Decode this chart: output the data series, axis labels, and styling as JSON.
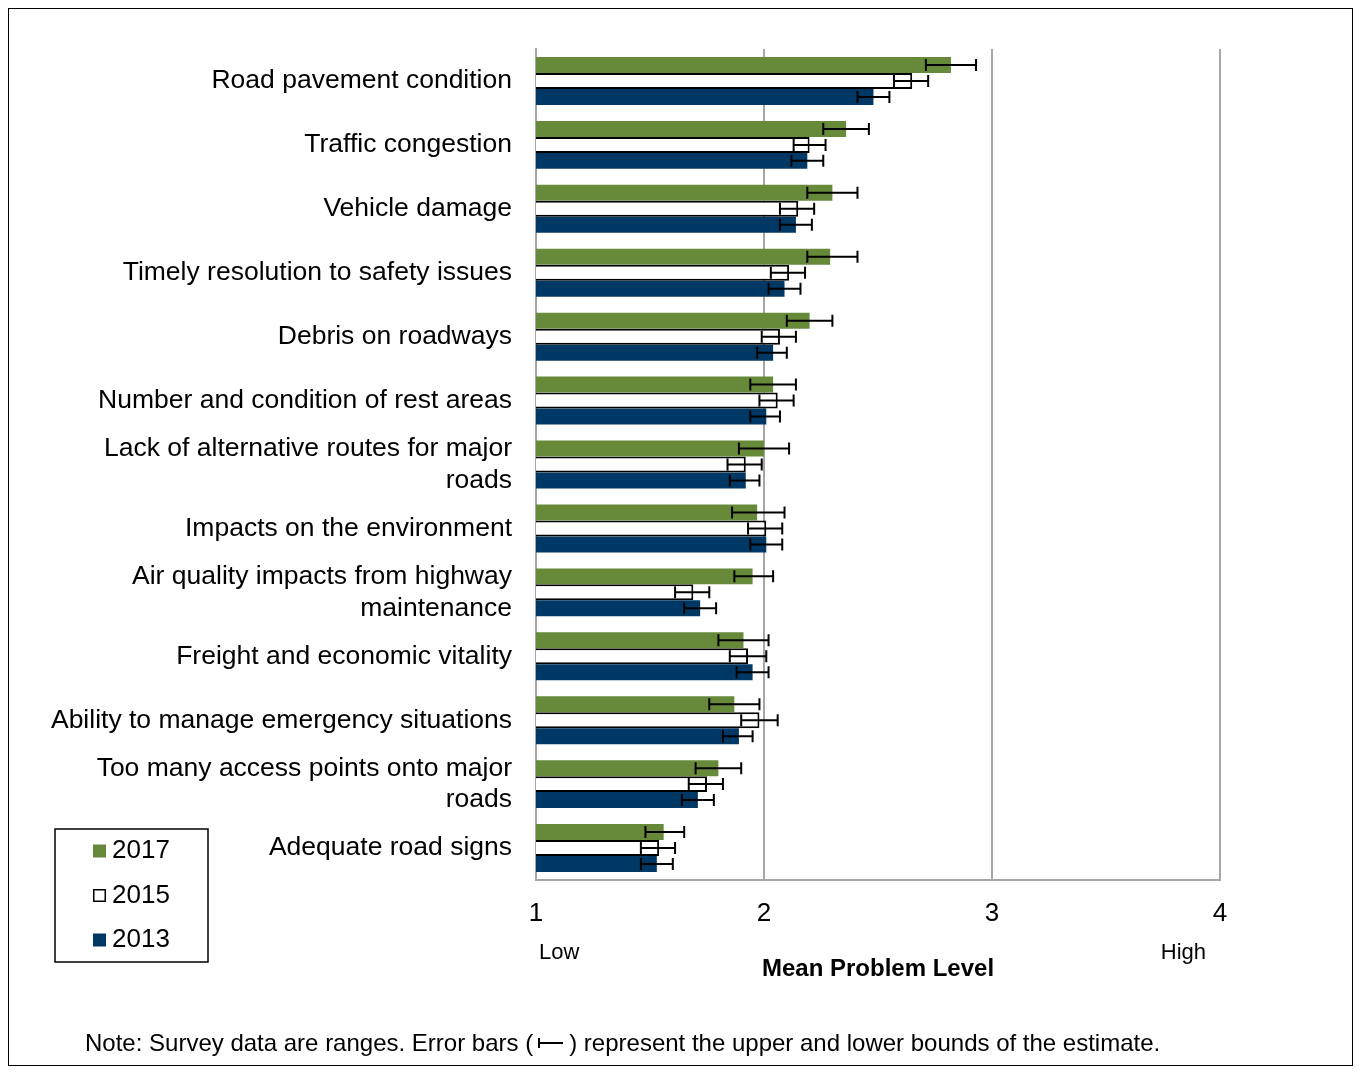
{
  "chart_data": {
    "type": "bar",
    "orientation": "horizontal",
    "xlabel": "Mean Problem Level",
    "categories": [
      "Road pavement condition",
      "Traffic congestion",
      "Vehicle damage",
      "Timely resolution to safety issues",
      "Debris on roadways",
      "Number and condition of rest areas",
      "Lack of alternative routes for major roads",
      "Impacts on the environment",
      "Air quality impacts from highway maintenance",
      "Freight and economic vitality",
      "Ability to manage emergency situations",
      "Too many access points onto major roads",
      "Adequate road signs"
    ],
    "series": [
      {
        "name": "2017",
        "color": "#668a3a",
        "values": [
          2.82,
          2.36,
          2.3,
          2.29,
          2.2,
          2.04,
          2.0,
          1.97,
          1.95,
          1.91,
          1.87,
          1.8,
          1.56
        ],
        "errors": [
          [
            2.71,
            2.93
          ],
          [
            2.26,
            2.46
          ],
          [
            2.19,
            2.41
          ],
          [
            2.19,
            2.41
          ],
          [
            2.1,
            2.3
          ],
          [
            1.94,
            2.14
          ],
          [
            1.89,
            2.11
          ],
          [
            1.86,
            2.09
          ],
          [
            1.87,
            2.04
          ],
          [
            1.8,
            2.02
          ],
          [
            1.76,
            1.98
          ],
          [
            1.7,
            1.9
          ],
          [
            1.48,
            1.65
          ]
        ]
      },
      {
        "name": "2015",
        "color": "#ffffff",
        "values": [
          2.65,
          2.2,
          2.15,
          2.11,
          2.07,
          2.06,
          1.92,
          2.01,
          1.69,
          1.93,
          1.98,
          1.75,
          1.54
        ],
        "errors": [
          [
            2.57,
            2.72
          ],
          [
            2.13,
            2.27
          ],
          [
            2.07,
            2.22
          ],
          [
            2.03,
            2.18
          ],
          [
            1.99,
            2.14
          ],
          [
            1.98,
            2.13
          ],
          [
            1.84,
            1.99
          ],
          [
            1.93,
            2.08
          ],
          [
            1.61,
            1.76
          ],
          [
            1.85,
            2.01
          ],
          [
            1.9,
            2.06
          ],
          [
            1.67,
            1.82
          ],
          [
            1.46,
            1.61
          ]
        ]
      },
      {
        "name": "2013",
        "color": "#003865",
        "values": [
          2.48,
          2.19,
          2.14,
          2.09,
          2.04,
          2.01,
          1.92,
          2.01,
          1.72,
          1.95,
          1.89,
          1.71,
          1.53
        ],
        "errors": [
          [
            2.41,
            2.55
          ],
          [
            2.12,
            2.26
          ],
          [
            2.07,
            2.21
          ],
          [
            2.02,
            2.16
          ],
          [
            1.97,
            2.1
          ],
          [
            1.94,
            2.07
          ],
          [
            1.85,
            1.98
          ],
          [
            1.94,
            2.08
          ],
          [
            1.65,
            1.79
          ],
          [
            1.88,
            2.02
          ],
          [
            1.82,
            1.95
          ],
          [
            1.64,
            1.78
          ],
          [
            1.46,
            1.6
          ]
        ]
      }
    ],
    "xlim": [
      1,
      4
    ],
    "xticks": [
      1,
      2,
      3,
      4
    ],
    "grid": "x",
    "legend": "bottom left",
    "annotations": [
      "Low",
      "High",
      "Note: Survey data are ranges. Error bars (",
      ") represent the upper and lower bounds of the estimate."
    ]
  }
}
